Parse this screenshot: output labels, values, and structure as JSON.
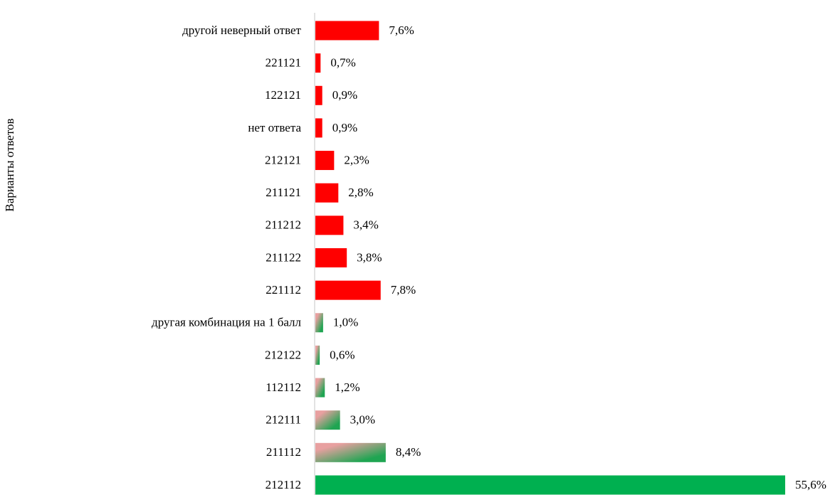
{
  "chart_data": {
    "type": "bar",
    "orientation": "horizontal",
    "y_label": "Варианты ответов",
    "categories": [
      "другой неверный ответ",
      "221121",
      "122121",
      "нет ответа",
      "212121",
      "211121",
      "211212",
      "211122",
      "221112",
      "другая комбинация на 1 балл",
      "212122",
      "112112",
      "212111",
      "211112",
      "212112"
    ],
    "values": [
      7.6,
      0.7,
      0.9,
      0.9,
      2.3,
      2.8,
      3.4,
      3.8,
      7.8,
      1.0,
      0.6,
      1.2,
      3.0,
      8.4,
      55.6
    ],
    "value_labels": [
      "7,6%",
      "0,7%",
      "0,9%",
      "0,9%",
      "2,3%",
      "2,8%",
      "3,4%",
      "3,8%",
      "7,8%",
      "1,0%",
      "0,6%",
      "1,2%",
      "3,0%",
      "8,4%",
      "55,6%"
    ],
    "colors": [
      "#ff0000",
      "#ff0000",
      "#ff0000",
      "#ff0000",
      "#ff0000",
      "#ff0000",
      "#ff0000",
      "#ff0000",
      "#ff0000",
      [
        "#e8a0a0",
        "#1fa552"
      ],
      [
        "#e8a0a0",
        "#1fa552"
      ],
      [
        "#e8a0a0",
        "#1fa552"
      ],
      [
        "#e8a0a0",
        "#1fa552"
      ],
      [
        "#e8a0a0",
        "#1fa552"
      ],
      "#00b050"
    ],
    "grid": false
  }
}
